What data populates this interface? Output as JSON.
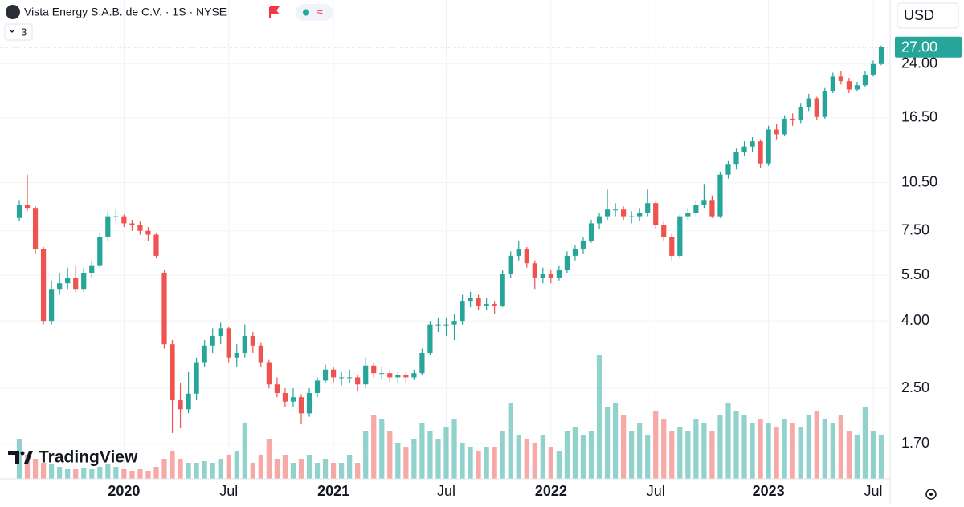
{
  "chart_data": {
    "type": "candlestick",
    "title": "Vista Energy S.A.B. de C.V. · 1S · NYSE",
    "currency": "USD",
    "study_count": 3,
    "logo": "TradingView",
    "log_scale": true,
    "grid": true,
    "colors": {
      "up": "#26a69a",
      "down": "#ef5350"
    },
    "ylim": [
      1.33,
      37.5
    ],
    "yticks": [
      {
        "value": 1.7,
        "label": "1.70"
      },
      {
        "value": 2.5,
        "label": "2.50"
      },
      {
        "value": 4,
        "label": "4.00"
      },
      {
        "value": 5.5,
        "label": "5.50"
      },
      {
        "value": 7.5,
        "label": "7.50"
      },
      {
        "value": 10.5,
        "label": "10.50"
      },
      {
        "value": 16.5,
        "label": "16.50"
      },
      {
        "value": 24,
        "label": "24.00"
      }
    ],
    "price_label": {
      "value": 27,
      "label": "27.00"
    },
    "categories": [
      null,
      null,
      null,
      null,
      null,
      null,
      null,
      null,
      null,
      null,
      null,
      null,
      null,
      "2020",
      null,
      null,
      null,
      null,
      null,
      null,
      null,
      null,
      null,
      null,
      null,
      null,
      "Jul",
      null,
      null,
      null,
      null,
      null,
      null,
      null,
      null,
      null,
      null,
      null,
      null,
      "2021",
      null,
      null,
      null,
      null,
      null,
      null,
      null,
      null,
      null,
      null,
      null,
      null,
      null,
      "Jul",
      null,
      null,
      null,
      null,
      null,
      null,
      null,
      null,
      null,
      null,
      null,
      null,
      "2022",
      null,
      null,
      null,
      null,
      null,
      null,
      null,
      null,
      null,
      null,
      null,
      null,
      "Jul",
      null,
      null,
      null,
      null,
      null,
      null,
      null,
      null,
      null,
      null,
      null,
      null,
      null,
      "2023",
      null,
      null,
      null,
      null,
      null,
      null,
      null,
      null,
      null,
      null,
      null,
      null,
      "Jul",
      null
    ],
    "series": [
      {
        "name": "Vista Energy S.A.B. de C.V.",
        "open": [
          8.2,
          9.0,
          8.8,
          6.6,
          4.0,
          5.0,
          5.2,
          5.4,
          5.0,
          5.6,
          5.9,
          7.2,
          8.3,
          8.3,
          7.9,
          7.8,
          7.5,
          7.3,
          5.6,
          3.4,
          2.3,
          2.16,
          2.41,
          3.0,
          3.37,
          3.6,
          3.8,
          3.1,
          3.2,
          3.6,
          3.37,
          3.0,
          2.57,
          2.42,
          2.28,
          2.35,
          2.1,
          2.42,
          2.64,
          2.85,
          2.7,
          2.7,
          2.7,
          2.57,
          2.93,
          2.78,
          2.78,
          2.7,
          2.74,
          2.7,
          2.78,
          3.2,
          3.9,
          3.9,
          3.9,
          4.0,
          4.6,
          4.7,
          4.45,
          4.5,
          4.45,
          5.55,
          6.3,
          6.6,
          5.98,
          5.4,
          5.55,
          5.4,
          5.7,
          6.3,
          6.6,
          7.0,
          7.9,
          8.3,
          8.7,
          8.7,
          8.3,
          8.3,
          8.5,
          9.1,
          7.8,
          7.2,
          6.3,
          8.3,
          8.5,
          9.0,
          9.3,
          8.3,
          11.1,
          11.9,
          13.0,
          13.5,
          14.0,
          12.0,
          15.2,
          14.7,
          16.4,
          16.2,
          17.8,
          18.9,
          16.6,
          19.9,
          22.0,
          21.3,
          20.1,
          20.7,
          22.3,
          24.0
        ],
        "high": [
          9.3,
          11.1,
          8.9,
          6.7,
          5.3,
          5.6,
          5.8,
          5.9,
          5.8,
          6.1,
          7.4,
          8.6,
          8.7,
          8.4,
          8.1,
          8.0,
          7.7,
          7.4,
          5.7,
          3.5,
          2.6,
          2.8,
          3.1,
          3.5,
          3.8,
          3.95,
          3.85,
          3.4,
          3.9,
          3.7,
          3.45,
          3.05,
          2.7,
          2.5,
          2.5,
          2.4,
          2.5,
          2.7,
          2.95,
          2.9,
          2.8,
          2.85,
          2.75,
          3.1,
          3.0,
          2.9,
          2.85,
          2.8,
          2.8,
          2.85,
          3.3,
          4.0,
          4.1,
          4.1,
          4.2,
          4.8,
          4.9,
          4.8,
          4.7,
          4.6,
          5.7,
          6.5,
          7.0,
          6.7,
          6.1,
          5.8,
          5.7,
          5.9,
          6.5,
          6.8,
          7.2,
          8.1,
          8.5,
          10.0,
          9.1,
          8.9,
          8.6,
          8.8,
          10.0,
          9.2,
          8.0,
          7.4,
          8.4,
          8.8,
          9.3,
          10.4,
          9.6,
          11.3,
          12.2,
          13.3,
          14.0,
          14.4,
          14.2,
          15.6,
          15.8,
          16.8,
          17.0,
          18.2,
          19.5,
          19.1,
          20.3,
          22.6,
          22.8,
          21.8,
          21.2,
          22.8,
          24.6,
          27.3
        ],
        "low": [
          8.0,
          8.6,
          6.4,
          3.9,
          3.9,
          4.8,
          5.0,
          4.9,
          4.9,
          5.4,
          5.8,
          7.0,
          8.0,
          7.7,
          7.5,
          7.3,
          7.0,
          6.2,
          3.3,
          1.83,
          1.9,
          2.1,
          2.3,
          2.9,
          3.2,
          3.4,
          3.0,
          2.9,
          3.1,
          3.2,
          2.9,
          2.5,
          2.35,
          2.2,
          2.2,
          1.95,
          2.05,
          2.35,
          2.6,
          2.6,
          2.55,
          2.6,
          2.45,
          2.5,
          2.7,
          2.65,
          2.6,
          2.6,
          2.6,
          2.65,
          2.75,
          3.15,
          3.7,
          3.6,
          3.5,
          3.9,
          4.4,
          4.3,
          4.3,
          4.2,
          4.4,
          5.4,
          6.1,
          5.8,
          5.0,
          5.2,
          5.2,
          5.3,
          5.6,
          6.1,
          6.4,
          6.9,
          7.6,
          8.1,
          8.3,
          8.1,
          7.9,
          8.0,
          8.3,
          7.6,
          7.0,
          6.1,
          6.2,
          8.1,
          8.3,
          8.8,
          8.2,
          8.2,
          10.8,
          11.5,
          12.6,
          13.0,
          11.6,
          11.8,
          14.2,
          14.5,
          15.6,
          15.9,
          17.3,
          16.2,
          16.4,
          19.6,
          20.8,
          19.6,
          19.8,
          20.4,
          22.0,
          23.8
        ],
        "close": [
          9.0,
          8.8,
          6.6,
          4.0,
          5.0,
          5.2,
          5.4,
          5.0,
          5.6,
          5.9,
          7.2,
          8.3,
          8.3,
          7.9,
          7.8,
          7.5,
          7.3,
          6.3,
          3.4,
          2.3,
          2.16,
          2.41,
          3.0,
          3.37,
          3.6,
          3.8,
          3.1,
          3.2,
          3.6,
          3.37,
          3.0,
          2.57,
          2.42,
          2.28,
          2.35,
          2.1,
          2.42,
          2.64,
          2.85,
          2.7,
          2.7,
          2.7,
          2.57,
          2.93,
          2.78,
          2.78,
          2.7,
          2.74,
          2.7,
          2.78,
          3.2,
          3.9,
          3.9,
          3.9,
          4.0,
          4.6,
          4.7,
          4.45,
          4.5,
          4.45,
          5.55,
          6.3,
          6.6,
          5.98,
          5.4,
          5.55,
          5.4,
          5.7,
          6.3,
          6.6,
          7.0,
          7.9,
          8.3,
          8.7,
          8.7,
          8.3,
          8.3,
          8.5,
          9.1,
          7.8,
          7.2,
          6.3,
          8.3,
          8.5,
          9.0,
          9.3,
          8.3,
          11.1,
          11.9,
          13.0,
          13.5,
          14.0,
          12.0,
          15.2,
          14.7,
          16.4,
          16.2,
          17.8,
          18.9,
          16.6,
          19.9,
          22.0,
          21.3,
          20.1,
          20.7,
          22.3,
          24.0,
          27.0
        ],
        "volume": [
          50,
          30,
          25,
          20,
          18,
          15,
          12,
          12,
          14,
          12,
          15,
          18,
          15,
          12,
          10,
          12,
          10,
          15,
          25,
          35,
          25,
          20,
          20,
          22,
          20,
          25,
          30,
          35,
          70,
          20,
          30,
          50,
          25,
          30,
          20,
          25,
          30,
          20,
          25,
          20,
          20,
          30,
          20,
          60,
          80,
          75,
          60,
          45,
          40,
          50,
          70,
          60,
          50,
          65,
          75,
          45,
          40,
          35,
          40,
          40,
          60,
          95,
          55,
          50,
          45,
          55,
          40,
          35,
          60,
          65,
          55,
          60,
          155,
          90,
          95,
          80,
          60,
          70,
          55,
          85,
          75,
          60,
          65,
          60,
          75,
          70,
          60,
          80,
          95,
          85,
          80,
          70,
          75,
          70,
          65,
          75,
          70,
          65,
          80,
          85,
          75,
          70,
          80,
          60,
          55,
          90,
          60,
          55
        ]
      }
    ]
  }
}
